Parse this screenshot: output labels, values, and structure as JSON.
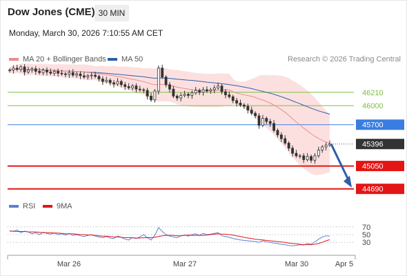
{
  "header": {
    "instrument": "Dow Jones (CME)",
    "timeframe": "30 MIN",
    "datetime": "Monday, March 30, 2026 7:10:55 AM CET",
    "copyright": "Research © 2026 Trading Central"
  },
  "legend": {
    "ma20_label": "MA 20 + Bollinger Bands",
    "ma50_label": "MA 50",
    "rsi_label": "RSI",
    "ma9_label": "9MA"
  },
  "colors": {
    "ma20": "#f08a8a",
    "bollinger_fill": "#fbd5d5",
    "ma50": "#2e5ea8",
    "support": "#e31515",
    "resistance": "#7cc043",
    "pivot": "#3a7de0",
    "rsi": "#5b7fd8",
    "ma9": "#e31515",
    "candle": "#333333",
    "arrow": "#2e5ea8"
  },
  "chart_data": [
    {
      "type": "candlestick",
      "title": "Dow Jones (CME)",
      "timeframe": "30 MIN",
      "x_ticks": [
        "Mar 26",
        "Mar 27",
        "Mar 30",
        "Apr 5"
      ],
      "ylim": [
        44600,
        46620
      ],
      "indicators": [
        "MA 20 + Bollinger Bands",
        "MA 50"
      ],
      "levels": [
        {
          "value": 46210,
          "label": "46210",
          "kind": "resistance"
        },
        {
          "value": 46000,
          "label": "46000",
          "kind": "resistance"
        },
        {
          "value": 45700,
          "label": "45700",
          "kind": "pivot"
        },
        {
          "value": 45396,
          "label": "45396",
          "kind": "last"
        },
        {
          "value": 45050,
          "label": "45050",
          "kind": "support"
        },
        {
          "value": 44690,
          "label": "44690",
          "kind": "support"
        }
      ],
      "close_series": [
        46560,
        46590,
        46570,
        46610,
        46530,
        46560,
        46580,
        46540,
        46520,
        46560,
        46530,
        46510,
        46540,
        46510,
        46500,
        46490,
        46520,
        46480,
        46500,
        46470,
        46450,
        46470,
        46480,
        46460,
        46420,
        46380,
        46400,
        46360,
        46340,
        46380,
        46330,
        46300,
        46280,
        46310,
        46260,
        46250,
        46240,
        46150,
        46090,
        46230,
        46590,
        46450,
        46330,
        46260,
        46150,
        46120,
        46160,
        46180,
        46160,
        46200,
        46240,
        46210,
        46250,
        46230,
        46250,
        46280,
        46310,
        46220,
        46170,
        46140,
        46080,
        46040,
        46010,
        45990,
        45930,
        45880,
        45840,
        45690,
        45800,
        45750,
        45720,
        45610,
        45540,
        45480,
        45410,
        45330,
        45250,
        45210,
        45210,
        45150,
        45200,
        45140,
        45210,
        45300,
        45350,
        45380,
        45396
      ],
      "forecast": {
        "from": 45396,
        "to": 44690,
        "direction": "down"
      }
    },
    {
      "type": "line",
      "title": "RSI",
      "ylim": [
        0,
        100
      ],
      "y_ticks": [
        70,
        50,
        30
      ],
      "series": [
        {
          "name": "RSI",
          "values": [
            60,
            58,
            62,
            55,
            59,
            57,
            52,
            55,
            50,
            56,
            53,
            51,
            54,
            50,
            52,
            49,
            53,
            48,
            50,
            47,
            45,
            48,
            50,
            46,
            44,
            42,
            45,
            41,
            40,
            46,
            43,
            38,
            36,
            42,
            40,
            44,
            50,
            42,
            36,
            48,
            68,
            58,
            50,
            46,
            44,
            42,
            47,
            49,
            46,
            50,
            52,
            48,
            53,
            50,
            51,
            53,
            55,
            47,
            45,
            43,
            40,
            38,
            36,
            35,
            34,
            33,
            32,
            30,
            34,
            31,
            30,
            28,
            27,
            25,
            24,
            22,
            21,
            22,
            24,
            23,
            27,
            25,
            31,
            38,
            44,
            47,
            46
          ]
        },
        {
          "name": "9MA",
          "values": [
            59,
            59,
            58,
            58,
            58,
            57,
            57,
            57,
            56,
            55,
            55,
            55,
            54,
            54,
            53,
            52,
            52,
            52,
            51,
            50,
            50,
            49,
            49,
            48,
            47,
            46,
            46,
            45,
            44,
            44,
            43,
            42,
            42,
            42,
            41,
            41,
            42,
            42,
            42,
            43,
            45,
            47,
            48,
            48,
            48,
            47,
            47,
            48,
            49,
            48,
            48,
            48,
            48,
            49,
            50,
            51,
            52,
            51,
            51,
            50,
            49,
            47,
            45,
            43,
            41,
            40,
            38,
            37,
            36,
            35,
            34,
            33,
            32,
            31,
            30,
            28,
            27,
            26,
            25,
            24,
            24,
            24,
            25,
            27,
            30,
            34,
            37
          ]
        }
      ]
    }
  ]
}
